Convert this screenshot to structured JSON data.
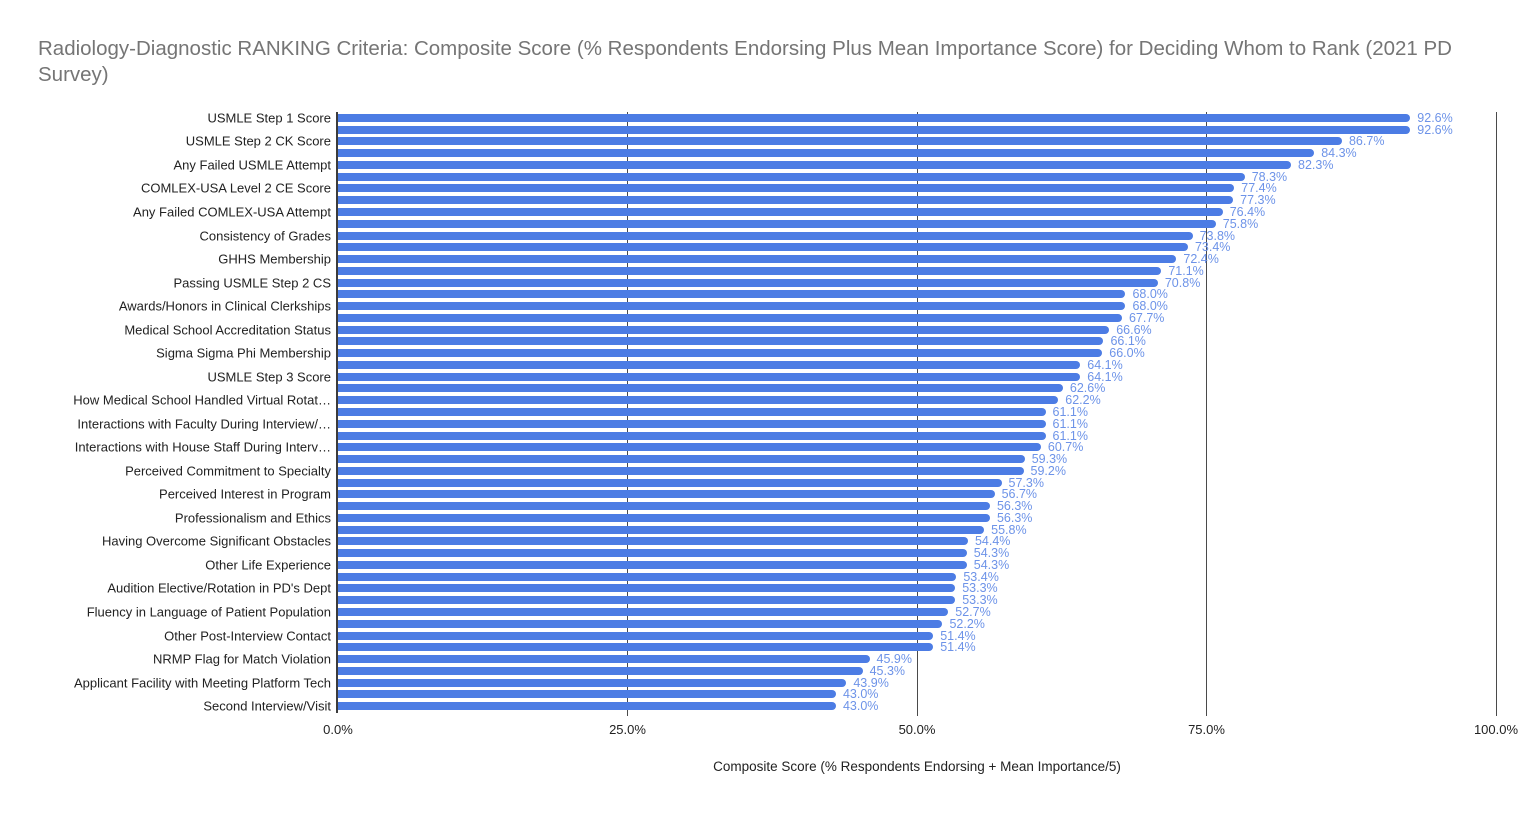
{
  "title": "Radiology-Diagnostic RANKING Criteria: Composite Score (% Respondents Endorsing Plus Mean Importance Score) for Deciding Whom to Rank (2021 PD Survey)",
  "chart_data": {
    "type": "bar",
    "orientation": "horizontal",
    "title": "Radiology-Diagnostic RANKING Criteria: Composite Score (% Respondents Endorsing Plus Mean Importance Score) for Deciding Whom to Rank (2021 PD Survey)",
    "xlabel": "Composite Score (% Respondents Endorsing + Mean Importance/5)",
    "ylabel": "",
    "xlim": [
      0,
      100
    ],
    "x_ticks": [
      "0.0%",
      "25.0%",
      "50.0%",
      "75.0%",
      "100.0%"
    ],
    "grid": "vertical",
    "legend": "none",
    "value_label_suffix": "%",
    "bar_color": "#4c7ce4",
    "value_label_color": "#6d93e8",
    "note": "51 bars; axis shows category labels only on alternating rows",
    "bars": [
      {
        "label": "USMLE Step 1 Score",
        "value": 92.6
      },
      {
        "label": "",
        "value": 92.6
      },
      {
        "label": "USMLE Step 2 CK Score",
        "value": 86.7
      },
      {
        "label": "",
        "value": 84.3
      },
      {
        "label": "Any Failed USMLE Attempt",
        "value": 82.3
      },
      {
        "label": "",
        "value": 78.3
      },
      {
        "label": "COMLEX-USA Level 2 CE Score",
        "value": 77.4
      },
      {
        "label": "",
        "value": 77.3
      },
      {
        "label": "Any Failed COMLEX-USA Attempt",
        "value": 76.4
      },
      {
        "label": "",
        "value": 75.8
      },
      {
        "label": "Consistency of Grades",
        "value": 73.8
      },
      {
        "label": "",
        "value": 73.4
      },
      {
        "label": "GHHS Membership",
        "value": 72.4
      },
      {
        "label": "",
        "value": 71.1
      },
      {
        "label": "Passing USMLE Step 2 CS",
        "value": 70.8
      },
      {
        "label": "",
        "value": 68.0
      },
      {
        "label": "Awards/Honors in Clinical Clerkships",
        "value": 68.0
      },
      {
        "label": "",
        "value": 67.7
      },
      {
        "label": "Medical School Accreditation Status",
        "value": 66.6
      },
      {
        "label": "",
        "value": 66.1
      },
      {
        "label": "Sigma Sigma Phi Membership",
        "value": 66.0
      },
      {
        "label": "",
        "value": 64.1
      },
      {
        "label": "USMLE Step 3 Score",
        "value": 64.1
      },
      {
        "label": "",
        "value": 62.6
      },
      {
        "label": "How Medical School Handled Virtual Rotat…",
        "value": 62.2
      },
      {
        "label": "",
        "value": 61.1
      },
      {
        "label": "Interactions with Faculty During Interview/…",
        "value": 61.1
      },
      {
        "label": "",
        "value": 61.1
      },
      {
        "label": "Interactions with House Staff During Interv…",
        "value": 60.7
      },
      {
        "label": "",
        "value": 59.3
      },
      {
        "label": "Perceived Commitment to Specialty",
        "value": 59.2
      },
      {
        "label": "",
        "value": 57.3
      },
      {
        "label": "Perceived Interest in Program",
        "value": 56.7
      },
      {
        "label": "",
        "value": 56.3
      },
      {
        "label": "Professionalism and Ethics",
        "value": 56.3
      },
      {
        "label": "",
        "value": 55.8
      },
      {
        "label": "Having Overcome Significant Obstacles",
        "value": 54.4
      },
      {
        "label": "",
        "value": 54.3
      },
      {
        "label": "Other Life Experience",
        "value": 54.3
      },
      {
        "label": "",
        "value": 53.4
      },
      {
        "label": "Audition Elective/Rotation in PD's Dept",
        "value": 53.3
      },
      {
        "label": "",
        "value": 53.3
      },
      {
        "label": "Fluency in Language of Patient Population",
        "value": 52.7
      },
      {
        "label": "",
        "value": 52.2
      },
      {
        "label": "Other Post-Interview Contact",
        "value": 51.4
      },
      {
        "label": "",
        "value": 51.4
      },
      {
        "label": "NRMP Flag for Match Violation",
        "value": 45.9
      },
      {
        "label": "",
        "value": 45.3
      },
      {
        "label": "Applicant Facility with Meeting Platform Tech",
        "value": 43.9
      },
      {
        "label": "",
        "value": 43.0
      },
      {
        "label": "Second Interview/Visit",
        "value": 43.0
      }
    ]
  }
}
